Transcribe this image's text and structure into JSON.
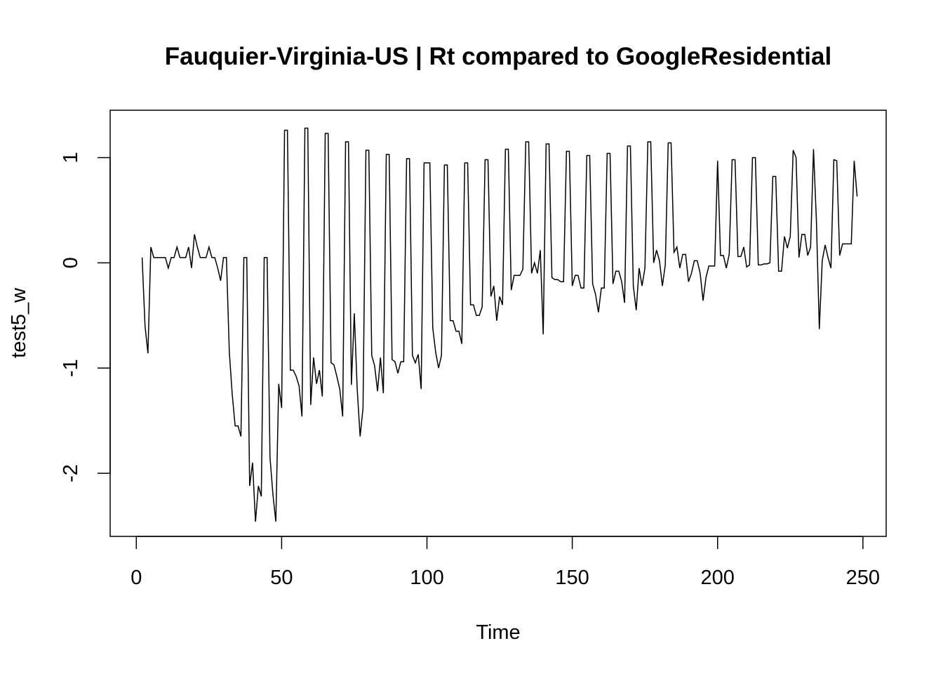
{
  "chart_data": {
    "type": "line",
    "title": "Fauquier-Virginia-US | Rt compared to GoogleResidential",
    "xlabel": "Time",
    "ylabel": "test5_w",
    "xlim": [
      -9,
      258
    ],
    "ylim": [
      -2.6,
      1.45
    ],
    "xticks": [
      0,
      50,
      100,
      150,
      200,
      250
    ],
    "yticks": [
      -2,
      -1,
      0,
      1
    ],
    "grid": false,
    "legend": "none",
    "line_color": "#000000",
    "series": [
      {
        "x": [
          2,
          3,
          4,
          5,
          6,
          7,
          8,
          9,
          10,
          11,
          12,
          13,
          14,
          15,
          16,
          17,
          18,
          19,
          20,
          21,
          22,
          23,
          24,
          25,
          26,
          27,
          28,
          29,
          30,
          31,
          32,
          33,
          34,
          35,
          36,
          37,
          38,
          39,
          40,
          41,
          42,
          43,
          44,
          45,
          46,
          47,
          48,
          49,
          50,
          51,
          52,
          53,
          54,
          55,
          56,
          57,
          58,
          59,
          60,
          61,
          62,
          63,
          64,
          65,
          66,
          67,
          68,
          69,
          70,
          71,
          72,
          73,
          74,
          75,
          76,
          77,
          78,
          79,
          80,
          81,
          82,
          83,
          84,
          85,
          86,
          87,
          88,
          89,
          90,
          91,
          92,
          93,
          94,
          95,
          96,
          97,
          98,
          99,
          100,
          101,
          102,
          103,
          104,
          105,
          106,
          107,
          108,
          109,
          110,
          111,
          112,
          113,
          114,
          115,
          116,
          117,
          118,
          119,
          120,
          121,
          122,
          123,
          124,
          125,
          126,
          127,
          128,
          129,
          130,
          131,
          132,
          133,
          134,
          135,
          136,
          137,
          138,
          139,
          140,
          141,
          142,
          143,
          144,
          145,
          146,
          147,
          148,
          149,
          150,
          151,
          152,
          153,
          154,
          155,
          156,
          157,
          158,
          159,
          160,
          161,
          162,
          163,
          164,
          165,
          166,
          167,
          168,
          169,
          170,
          171,
          172,
          173,
          174,
          175,
          176,
          177,
          178,
          179,
          180,
          181,
          182,
          183,
          184,
          185,
          186,
          187,
          188,
          189,
          190,
          191,
          192,
          193,
          194,
          195,
          196,
          197,
          198,
          199,
          200,
          201,
          202,
          203,
          204,
          205,
          206,
          207,
          208,
          209,
          210,
          211,
          212,
          213,
          214,
          215,
          216,
          217,
          218,
          219,
          220,
          221,
          222,
          223,
          224,
          225,
          226,
          227,
          228,
          229,
          230,
          231,
          232,
          233,
          234,
          235,
          236,
          237,
          238,
          239,
          240,
          241,
          242,
          243,
          244,
          245,
          246,
          247,
          248
        ],
        "y": [
          0.05,
          -0.6,
          -0.86,
          0.15,
          0.05,
          0.05,
          0.05,
          0.05,
          0.05,
          -0.05,
          0.05,
          0.05,
          0.15,
          0.05,
          0.05,
          0.05,
          0.15,
          -0.05,
          0.27,
          0.15,
          0.05,
          0.05,
          0.05,
          0.15,
          0.05,
          0.05,
          -0.05,
          -0.17,
          0.05,
          0.05,
          -0.85,
          -1.25,
          -1.55,
          -1.55,
          -1.65,
          0.05,
          0.05,
          -2.12,
          -1.9,
          -2.46,
          -2.12,
          -2.22,
          0.05,
          0.05,
          -1.85,
          -2.2,
          -2.46,
          -1.15,
          -1.38,
          1.26,
          1.26,
          -1.02,
          -1.02,
          -1.08,
          -1.17,
          -1.46,
          1.28,
          1.28,
          -1.35,
          -0.9,
          -1.15,
          -1.02,
          -1.27,
          1.23,
          1.23,
          -0.95,
          -0.97,
          -1.08,
          -1.2,
          -1.46,
          1.15,
          1.15,
          -1.16,
          -0.48,
          -1.2,
          -1.65,
          -1.38,
          1.07,
          1.07,
          -0.88,
          -0.98,
          -1.22,
          -0.9,
          -1.24,
          1.03,
          1.03,
          -0.92,
          -0.94,
          -1.05,
          -0.94,
          -0.94,
          0.99,
          0.99,
          -0.88,
          -0.95,
          -0.87,
          -1.2,
          0.95,
          0.95,
          0.95,
          -0.62,
          -0.85,
          -1.0,
          -0.88,
          0.93,
          0.93,
          -0.55,
          -0.55,
          -0.65,
          -0.65,
          -0.77,
          0.95,
          0.95,
          -0.4,
          -0.4,
          -0.5,
          -0.5,
          -0.42,
          0.98,
          0.98,
          -0.32,
          -0.22,
          -0.55,
          -0.32,
          -0.4,
          1.08,
          1.08,
          -0.26,
          -0.12,
          -0.12,
          -0.12,
          -0.06,
          1.15,
          1.15,
          -0.1,
          0.0,
          -0.1,
          0.12,
          -0.68,
          1.13,
          1.13,
          -0.14,
          -0.16,
          -0.16,
          -0.18,
          -0.18,
          1.06,
          1.06,
          -0.22,
          -0.12,
          -0.12,
          -0.24,
          -0.24,
          1.02,
          1.02,
          -0.2,
          -0.3,
          -0.47,
          -0.24,
          -0.24,
          1.04,
          1.04,
          -0.2,
          -0.08,
          -0.08,
          -0.18,
          -0.38,
          1.11,
          1.11,
          -0.22,
          -0.45,
          -0.05,
          -0.22,
          -0.05,
          1.15,
          1.15,
          0.0,
          0.12,
          0.02,
          -0.22,
          -0.02,
          1.14,
          1.14,
          0.1,
          0.15,
          -0.05,
          0.08,
          0.08,
          -0.18,
          -0.1,
          0.02,
          0.02,
          -0.1,
          -0.36,
          -0.14,
          -0.03,
          -0.03,
          -0.03,
          0.97,
          0.07,
          0.07,
          -0.05,
          0.08,
          0.98,
          0.98,
          0.06,
          0.06,
          0.15,
          -0.04,
          -0.02,
          1.0,
          1.0,
          -0.02,
          -0.02,
          -0.01,
          -0.01,
          0.0,
          0.82,
          0.82,
          -0.08,
          -0.08,
          0.25,
          0.14,
          0.25,
          1.07,
          1.0,
          0.05,
          0.27,
          0.27,
          0.07,
          0.15,
          1.08,
          0.4,
          -0.63,
          0.02,
          0.17,
          0.05,
          -0.05,
          0.98,
          0.97,
          0.07,
          0.18,
          0.18,
          0.18,
          0.18,
          0.97,
          0.63
        ]
      }
    ]
  }
}
